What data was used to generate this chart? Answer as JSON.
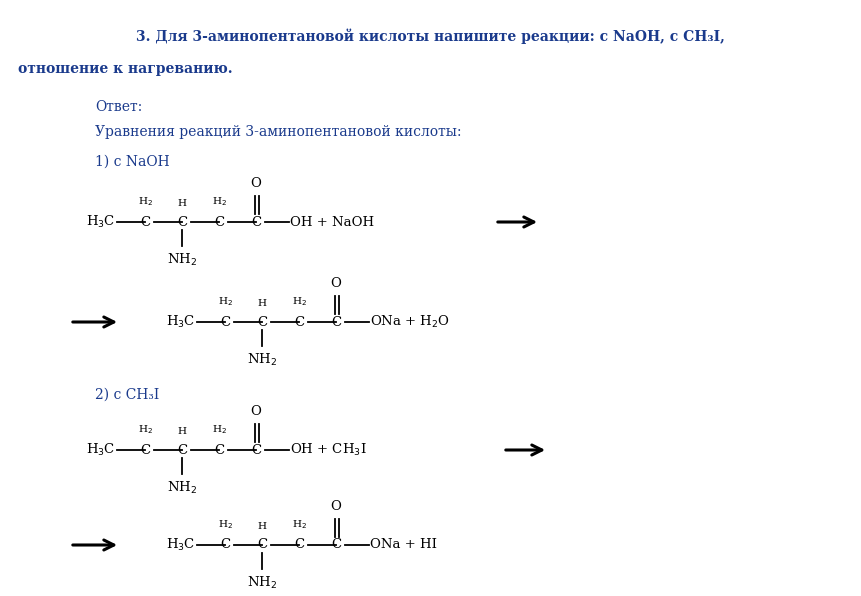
{
  "bg_color": "#ffffff",
  "title_color": "#1a3a8c",
  "struct_color": "#000000",
  "title_line1": "3. Для 3-аминопентановой кислоты напишите реакции: с NaOH, с CH₃I,",
  "title_line2": "отношение к нагреванию.",
  "answer_label": "Ответ:",
  "equations_label": "Уравнения реакций 3-аминопентановой кислоты:",
  "reaction1_label": "1) с NaOH",
  "reaction2_label": "2) с CH₃I",
  "figwidth": 8.61,
  "figheight": 5.96,
  "dpi": 100
}
